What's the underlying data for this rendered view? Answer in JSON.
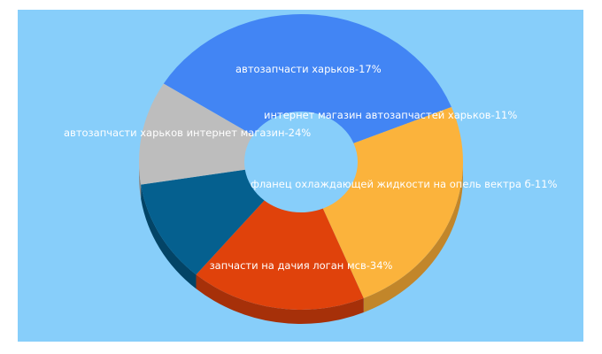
{
  "chart_data": {
    "type": "pie",
    "style": "3d-donut",
    "slices": [
      {
        "label": "запчасти на дачия логан мсв",
        "value": 34,
        "color": "#4285f4",
        "side": "#2f64b7",
        "display": "запчасти на дачия логан мсв-34%"
      },
      {
        "label": "автозапчасти харьков интернет магазин",
        "value": 24,
        "color": "#fbb33c",
        "side": "#c2862a",
        "display": "автозапчасти харьков интернет магазин-24%"
      },
      {
        "label": "автозапчасти харьков",
        "value": 17,
        "color": "#e0420b",
        "side": "#a63009",
        "display": "автозапчасти харьков-17%"
      },
      {
        "label": "интернет магазин автозапчастей харьков",
        "value": 11,
        "color": "#05608f",
        "side": "#034466",
        "display": "интернет магазин автозапчастей харьков-11%"
      },
      {
        "label": "фланец охлаждающей жидкости на опель вектра б",
        "value": 11,
        "color": "#bdbdbd",
        "side": "#8c8c8c",
        "display": "фланец охлаждающей жидкости на опель вектра б-11%"
      }
    ],
    "background": "#87cefa"
  }
}
